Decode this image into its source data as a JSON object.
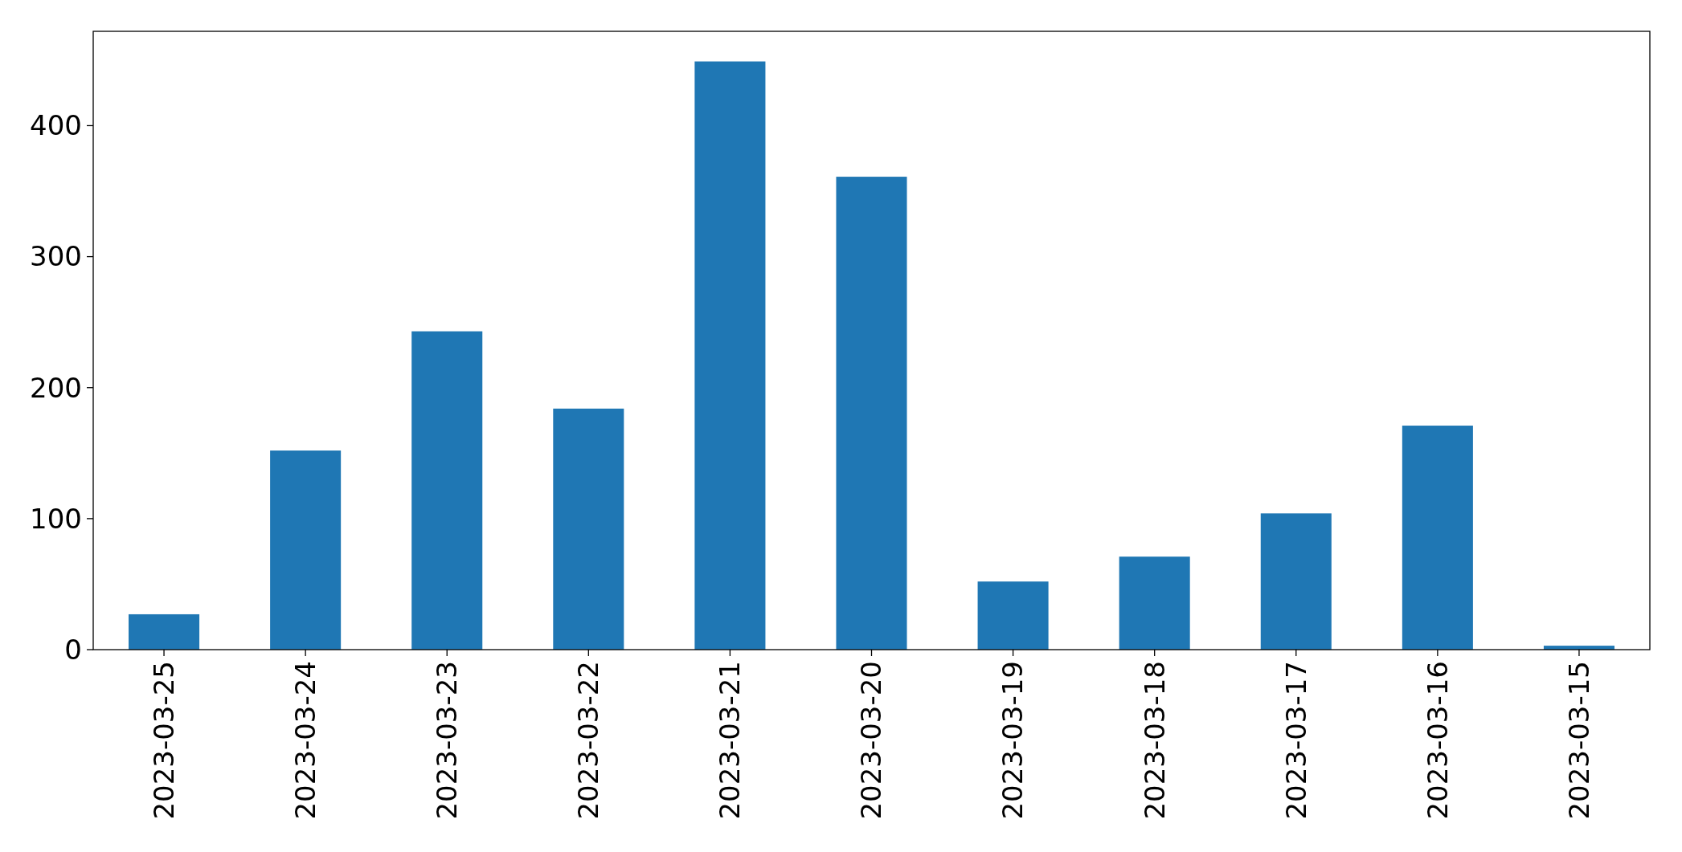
{
  "chart_data": {
    "type": "bar",
    "categories": [
      "2023-03-25",
      "2023-03-24",
      "2023-03-23",
      "2023-03-22",
      "2023-03-21",
      "2023-03-20",
      "2023-03-19",
      "2023-03-18",
      "2023-03-17",
      "2023-03-16",
      "2023-03-15"
    ],
    "values": [
      27,
      152,
      243,
      184,
      449,
      361,
      52,
      71,
      104,
      171,
      3
    ],
    "color": "#1f77b4",
    "ylim": [
      0,
      472
    ],
    "yticks": [
      0,
      100,
      200,
      300,
      400
    ],
    "grid": false
  }
}
